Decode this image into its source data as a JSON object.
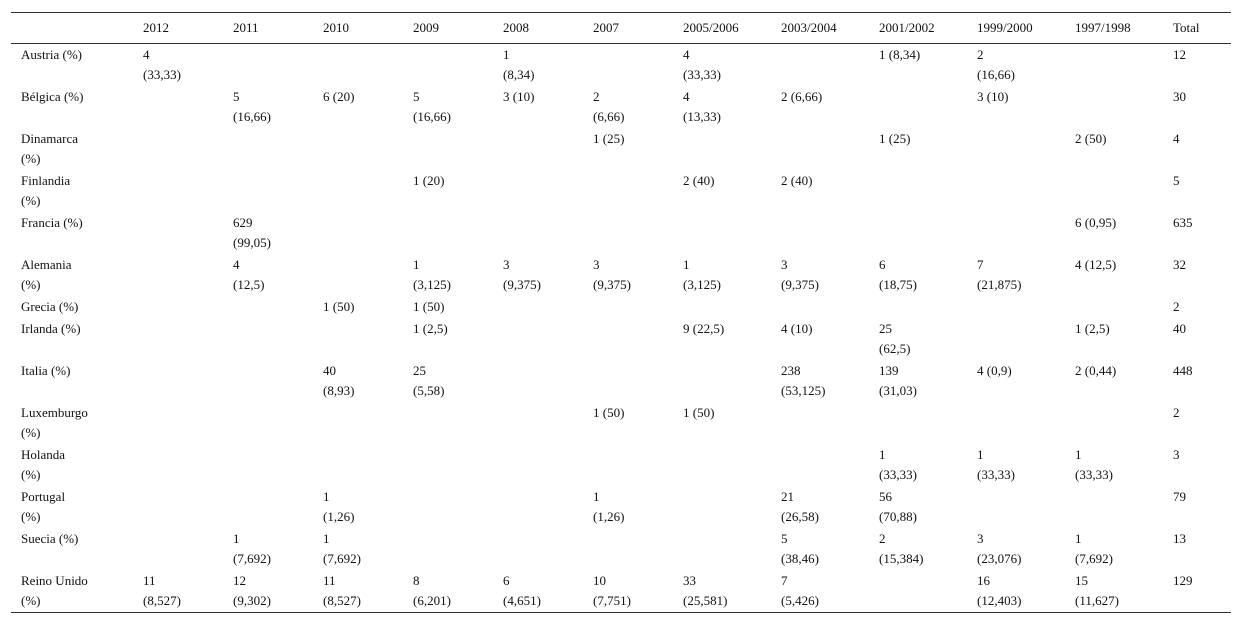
{
  "table": {
    "header": [
      null,
      "2012",
      "2011",
      "2010",
      "2009",
      "2008",
      "2007",
      "2005/2006",
      "2003/2004",
      "2001/2002",
      "1999/2000",
      "1997/1998",
      "Total"
    ],
    "rows": [
      [
        "Austria (%)",
        "4\n(33,33)",
        null,
        null,
        null,
        "1\n(8,34)",
        null,
        "4\n(33,33)",
        null,
        "1 (8,34)",
        "2\n(16,66)",
        null,
        "12"
      ],
      [
        "Bélgica (%)",
        null,
        "5\n(16,66)",
        "6 (20)",
        "5\n(16,66)",
        "3 (10)",
        "2\n(6,66)",
        "4\n(13,33)",
        "2 (6,66)",
        null,
        "3 (10)",
        null,
        "30"
      ],
      [
        "Dinamarca\n(%)",
        null,
        null,
        null,
        null,
        null,
        "1 (25)",
        null,
        null,
        "1 (25)",
        null,
        "2 (50)",
        "4"
      ],
      [
        "Finlandia\n(%)",
        null,
        null,
        null,
        "1 (20)",
        null,
        null,
        "2 (40)",
        "2 (40)",
        null,
        null,
        null,
        "5"
      ],
      [
        "Francia (%)",
        null,
        "629\n(99,05)",
        null,
        null,
        null,
        null,
        null,
        null,
        null,
        null,
        "6 (0,95)",
        "635"
      ],
      [
        "Alemania\n(%)",
        null,
        "4\n(12,5)",
        null,
        "1\n(3,125)",
        "3\n(9,375)",
        "3\n(9,375)",
        "1\n(3,125)",
        "3\n(9,375)",
        "6\n(18,75)",
        "7\n(21,875)",
        "4 (12,5)",
        "32"
      ],
      [
        "Grecia (%)",
        null,
        null,
        "1 (50)",
        "1 (50)",
        null,
        null,
        null,
        null,
        null,
        null,
        null,
        "2"
      ],
      [
        "Irlanda (%)",
        null,
        null,
        null,
        "1 (2,5)",
        null,
        null,
        "9 (22,5)",
        "4 (10)",
        "25\n(62,5)",
        null,
        "1 (2,5)",
        "40"
      ],
      [
        "Italia (%)",
        null,
        null,
        "40\n(8,93)",
        "25\n(5,58)",
        null,
        null,
        null,
        "238\n(53,125)",
        "139\n(31,03)",
        "4 (0,9)",
        "2 (0,44)",
        "448"
      ],
      [
        "Luxemburgo\n(%)",
        null,
        null,
        null,
        null,
        null,
        "1 (50)",
        "1 (50)",
        null,
        null,
        null,
        null,
        "2"
      ],
      [
        "Holanda\n(%)",
        null,
        null,
        null,
        null,
        null,
        null,
        null,
        null,
        "1\n(33,33)",
        "1\n(33,33)",
        "1\n(33,33)",
        "3"
      ],
      [
        "Portugal\n(%)",
        null,
        null,
        "1\n(1,26)",
        null,
        null,
        "1\n(1,26)",
        null,
        "21\n(26,58)",
        "56\n(70,88)",
        null,
        null,
        "79"
      ],
      [
        "Suecia (%)",
        null,
        "1\n(7,692)",
        "1\n(7,692)",
        null,
        null,
        null,
        null,
        "5\n(38,46)",
        "2\n(15,384)",
        "3\n(23,076)",
        "1\n(7,692)",
        "13"
      ],
      [
        "Reino Unido\n(%)",
        "11\n(8,527)",
        "12\n(9,302)",
        "11\n(8,527)",
        "8\n(6,201)",
        "6\n(4,651)",
        "10\n(7,751)",
        "33\n(25,581)",
        "7\n(5,426)",
        null,
        "16\n(12,403)",
        "15\n(11,627)",
        "129"
      ]
    ]
  }
}
